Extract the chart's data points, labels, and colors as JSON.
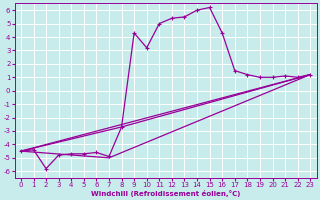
{
  "background_color": "#c8ecec",
  "line_color": "#990099",
  "xlim": [
    -0.5,
    23.5
  ],
  "ylim": [
    -6.5,
    6.5
  ],
  "xticks": [
    0,
    1,
    2,
    3,
    4,
    5,
    6,
    7,
    8,
    9,
    10,
    11,
    12,
    13,
    14,
    15,
    16,
    17,
    18,
    19,
    20,
    21,
    22,
    23
  ],
  "yticks": [
    -6,
    -5,
    -4,
    -3,
    -2,
    -1,
    0,
    1,
    2,
    3,
    4,
    5,
    6
  ],
  "line1_x": [
    0,
    1,
    2,
    3,
    4,
    5,
    6,
    7,
    8,
    9,
    10,
    11,
    12,
    13,
    14,
    15,
    16,
    17,
    18,
    19,
    20,
    21,
    22,
    23
  ],
  "line1_y": [
    -4.5,
    -4.4,
    -5.8,
    -4.8,
    -4.7,
    -4.7,
    -4.6,
    -4.9,
    -2.7,
    4.3,
    3.2,
    5.0,
    5.4,
    5.5,
    6.0,
    6.2,
    4.3,
    1.5,
    1.2,
    1.0,
    1.0,
    1.1,
    1.0,
    1.2
  ],
  "straight_lines": [
    {
      "x": [
        0,
        23
      ],
      "y": [
        -4.5,
        1.2
      ]
    },
    {
      "x": [
        0,
        8,
        23
      ],
      "y": [
        -4.5,
        -2.7,
        1.2
      ]
    },
    {
      "x": [
        0,
        7,
        23
      ],
      "y": [
        -4.5,
        -5.0,
        1.2
      ]
    }
  ],
  "xlabel": "Windchill (Refroidissement éolien,°C)",
  "xlabel_bold": true,
  "tick_fontsize": 5,
  "xlabel_fontsize": 5
}
